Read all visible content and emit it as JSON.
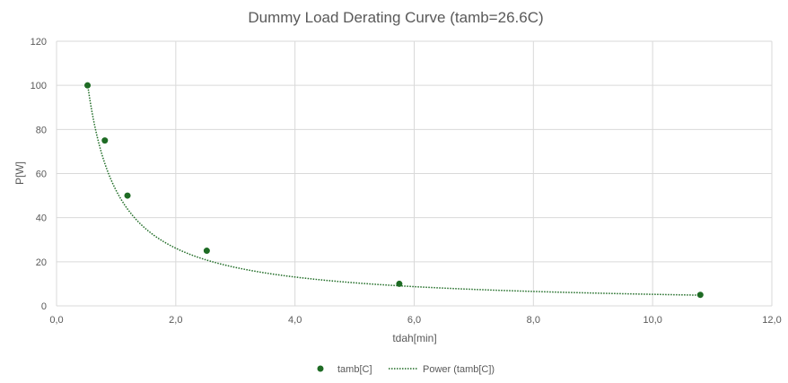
{
  "chart_data": {
    "type": "scatter",
    "title": "Dummy Load Derating Curve (tamb=26.6C)",
    "xlabel": "tdah[min]",
    "ylabel": "P[W]",
    "xlim": [
      0,
      12
    ],
    "ylim": [
      0,
      120
    ],
    "x_ticks": [
      0,
      2,
      4,
      6,
      8,
      10,
      12
    ],
    "x_tick_labels": [
      "0,0",
      "2,0",
      "4,0",
      "6,0",
      "8,0",
      "10,0",
      "12,0"
    ],
    "y_ticks": [
      0,
      20,
      40,
      60,
      80,
      100,
      120
    ],
    "y_tick_labels": [
      "0",
      "20",
      "40",
      "60",
      "80",
      "100",
      "120"
    ],
    "grid": true,
    "legend_position": "bottom",
    "series": [
      {
        "name": "tamb[C]",
        "kind": "markers",
        "color": "#1e6b24",
        "x": [
          0.52,
          0.81,
          1.19,
          2.52,
          5.75,
          10.8
        ],
        "y": [
          100,
          75,
          50,
          25,
          10,
          5
        ]
      },
      {
        "name": "Power (tamb[C])",
        "kind": "trendline-power",
        "color": "#1e6b24",
        "x_range": [
          0.52,
          10.8
        ],
        "coef_a": 52.3,
        "exponent": -1.0
      }
    ]
  }
}
